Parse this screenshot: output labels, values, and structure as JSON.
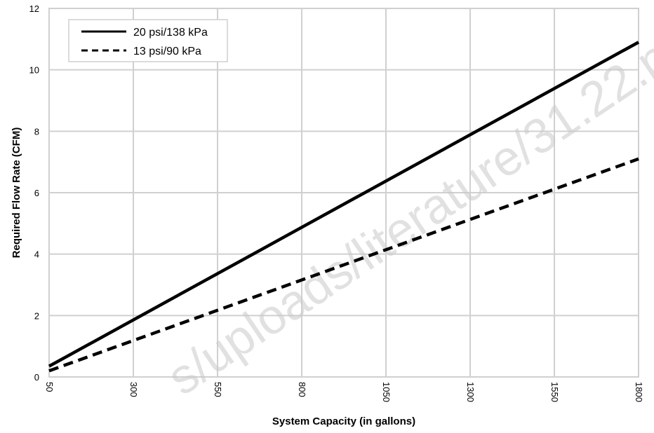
{
  "chart_data": {
    "type": "line",
    "title": "",
    "xlabel": "System Capacity (in gallons)",
    "ylabel": "Required Flow Rate (CFM)",
    "x": [
      50,
      1800
    ],
    "x_ticks": [
      "50",
      "300",
      "550",
      "800",
      "1050",
      "1300",
      "1550",
      "1800"
    ],
    "x_tick_values": [
      50,
      300,
      550,
      800,
      1050,
      1300,
      1550,
      1800
    ],
    "y_ticks": [
      "0",
      "2",
      "4",
      "6",
      "8",
      "10",
      "12"
    ],
    "y_tick_values": [
      0,
      2,
      4,
      6,
      8,
      10,
      12
    ],
    "xlim": [
      50,
      1800
    ],
    "ylim": [
      0,
      12
    ],
    "grid": true,
    "legend_position": "top-left",
    "series": [
      {
        "name": "20 psi/138 kPa",
        "style": "solid",
        "color": "#000000",
        "values": [
          0.35,
          10.9
        ]
      },
      {
        "name": "13 psi/90 kPa",
        "style": "dashed",
        "color": "#000000",
        "values": [
          0.2,
          7.1
        ]
      }
    ],
    "watermark": "s/uploads/literature/31.22.p"
  }
}
